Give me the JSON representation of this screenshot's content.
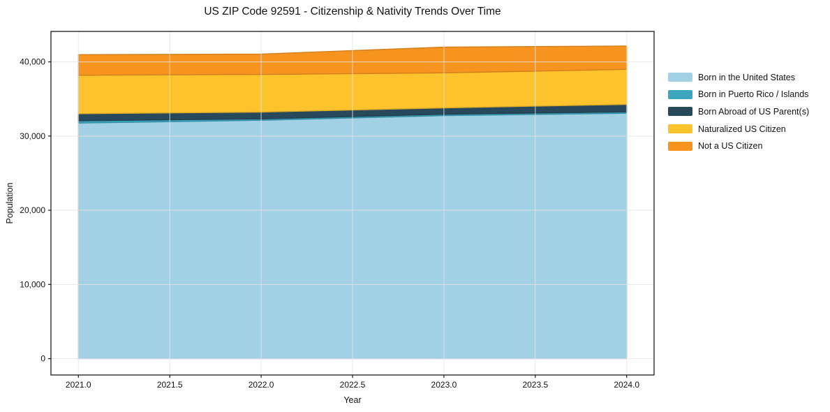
{
  "chart_data": {
    "type": "area",
    "stacked": true,
    "title": "US ZIP Code 92591 - Citizenship & Nativity Trends Over Time",
    "xlabel": "Year",
    "ylabel": "Population",
    "x": [
      2021,
      2022,
      2023,
      2024
    ],
    "series": [
      {
        "name": "Born in the United States",
        "color": "#a2d1e6",
        "values": [
          31750,
          32130,
          32760,
          33070
        ]
      },
      {
        "name": "Born in Puerto Rico / Islands",
        "color": "#3ba6bd",
        "values": [
          310,
          190,
          190,
          190
        ]
      },
      {
        "name": "Born Abroad of US Parent(s)",
        "color": "#28495c",
        "values": [
          950,
          910,
          850,
          1010
        ]
      },
      {
        "name": "Naturalized US Citizen",
        "color": "#fcc32d",
        "values": [
          5190,
          5070,
          4720,
          4720
        ]
      },
      {
        "name": "Not a US Citizen",
        "color": "#f6941f",
        "values": [
          2770,
          2740,
          3460,
          3140
        ]
      }
    ],
    "xlim": [
      2020.85,
      2024.15
    ],
    "ylim": [
      -2200,
      44100
    ],
    "xticks": {
      "values": [
        2021.0,
        2021.5,
        2022.0,
        2022.5,
        2023.0,
        2023.5,
        2024.0
      ],
      "labels": [
        "2021.0",
        "2021.5",
        "2022.0",
        "2022.5",
        "2023.0",
        "2023.5",
        "2024.0"
      ]
    },
    "yticks": {
      "values": [
        0,
        10000,
        20000,
        30000,
        40000
      ],
      "labels": [
        "0",
        "10,000",
        "20,000",
        "30,000",
        "40,000"
      ]
    },
    "grid": true,
    "legend_position": "right-outside"
  },
  "style": {
    "grid_color": "#e4e4e4",
    "axis_color": "#1a1a1a",
    "text_color": "#111111",
    "background": "#ffffff"
  }
}
